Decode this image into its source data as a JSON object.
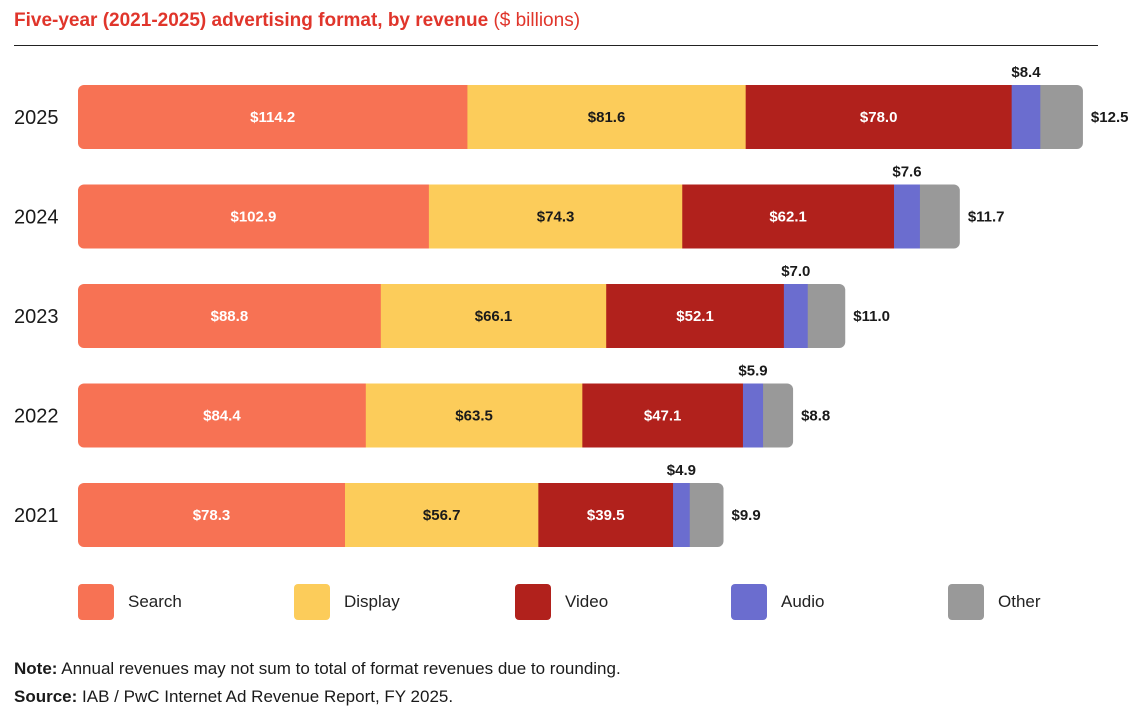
{
  "title": {
    "main": "Five-year (2021-2025) advertising format, by revenue",
    "unit": "($ billions)"
  },
  "chart_data": {
    "type": "bar",
    "orientation": "horizontal",
    "stacked": true,
    "categories": [
      "2025",
      "2024",
      "2023",
      "2022",
      "2021"
    ],
    "series": [
      {
        "name": "Search",
        "color": "#f77254",
        "values": [
          114.2,
          102.9,
          88.8,
          84.4,
          78.3
        ],
        "labels": [
          "$114.2",
          "$102.9",
          "$88.8",
          "$84.4",
          "$78.3"
        ]
      },
      {
        "name": "Display",
        "color": "#fccc5a",
        "values": [
          81.6,
          74.3,
          66.1,
          63.5,
          56.7
        ],
        "labels": [
          "$81.6",
          "$74.3",
          "$66.1",
          "$63.5",
          "$56.7"
        ]
      },
      {
        "name": "Video",
        "color": "#b1211c",
        "values": [
          78.0,
          62.1,
          52.1,
          47.1,
          39.5
        ],
        "labels": [
          "$78.0",
          "$62.1",
          "$52.1",
          "$47.1",
          "$39.5"
        ]
      },
      {
        "name": "Audio",
        "color": "#6b6dcf",
        "values": [
          8.4,
          7.6,
          7.0,
          5.9,
          4.9
        ],
        "labels": [
          "$8.4",
          "$7.6",
          "$7.0",
          "$5.9",
          "$4.9"
        ]
      },
      {
        "name": "Other",
        "color": "#999999",
        "values": [
          12.5,
          11.7,
          11.0,
          8.8,
          9.9
        ],
        "labels": [
          "$12.5",
          "$11.7",
          "$11.0",
          "$8.8",
          "$9.9"
        ]
      }
    ],
    "legend_position": "bottom",
    "grid": false
  },
  "legend": [
    "Search",
    "Display",
    "Video",
    "Audio",
    "Other"
  ],
  "note": {
    "label": "Note:",
    "text": "Annual revenues may not sum to total of format revenues due to rounding."
  },
  "source": {
    "label": "Source:",
    "text": "IAB / PwC Internet Ad Revenue Report, FY 2025."
  }
}
